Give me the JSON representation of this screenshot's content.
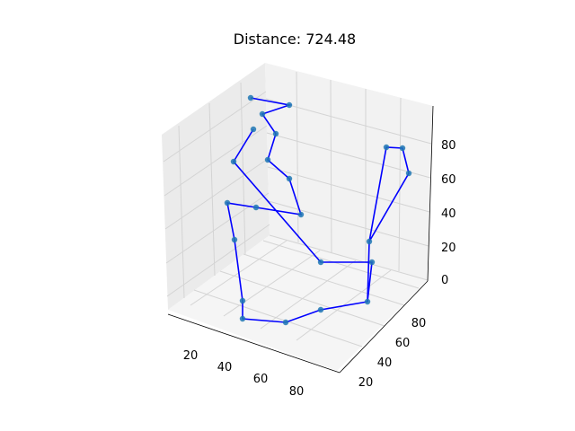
{
  "chart_data": {
    "type": "scatter3d-path",
    "title": "Distance: 724.48",
    "xlabel": "",
    "ylabel": "",
    "zlabel": "",
    "grid": true,
    "x_ticks": [
      "20",
      "40",
      "60",
      "80"
    ],
    "y_ticks": [
      "20",
      "40",
      "60",
      "80"
    ],
    "z_ticks": [
      "0",
      "20",
      "40",
      "60",
      "80"
    ],
    "colors": {
      "path": "#0000ff",
      "points": "#1f77b4",
      "pane": "#f0f0f0",
      "grid": "#d9d9d9"
    },
    "route_order": [
      [
        279,
        109
      ],
      [
        322,
        117
      ],
      [
        292,
        127
      ],
      [
        307,
        149
      ],
      [
        298,
        178
      ],
      [
        322,
        199
      ],
      [
        335,
        239
      ],
      [
        285,
        231
      ],
      [
        253,
        226
      ],
      [
        261,
        267
      ],
      [
        270,
        335
      ],
      [
        270,
        355
      ],
      [
        318,
        359
      ],
      [
        357,
        345
      ],
      [
        409,
        336
      ],
      [
        414,
        292
      ],
      [
        357,
        292
      ],
      [
        260,
        180
      ],
      [
        282,
        144
      ]
    ],
    "route_order_2": [
      [
        409,
        336
      ],
      [
        411,
        269
      ],
      [
        455,
        193
      ],
      [
        448,
        165
      ],
      [
        430,
        164
      ],
      [
        411,
        269
      ]
    ]
  }
}
